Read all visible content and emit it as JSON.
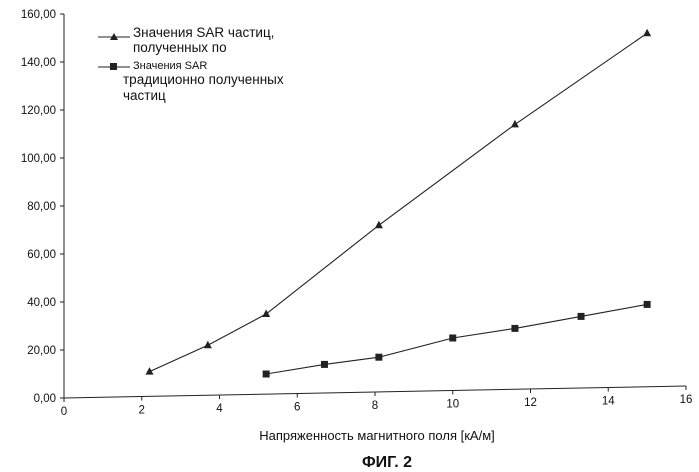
{
  "chart_data": {
    "type": "line",
    "title": "",
    "xlabel": "Напряженность магнитного поля [кА/м]",
    "ylabel": "",
    "xlim": [
      0,
      16
    ],
    "ylim": [
      0,
      160
    ],
    "x_ticks": [
      "0",
      "2",
      "4",
      "6",
      "8",
      "10",
      "12",
      "14",
      "16"
    ],
    "y_ticks": [
      "0,00",
      "20,00",
      "40,00",
      "60,00",
      "80,00",
      "100,00",
      "120,00",
      "140,00",
      "160,00"
    ],
    "grid": false,
    "legend_position": "top-left",
    "series": [
      {
        "name": "Значения SAR частиц, полученных по",
        "legend_lines": [
          "Значения SAR частиц,",
          "полученных по"
        ],
        "marker": "triangle",
        "x": [
          2.2,
          3.7,
          5.2,
          8.1,
          11.6,
          15.0
        ],
        "y": [
          11,
          22,
          35,
          72,
          114,
          152
        ]
      },
      {
        "name": "Значения SAR традиционно полученных частиц",
        "legend_lines": [
          "Значения SAR",
          "традиционно полученных",
          "частиц"
        ],
        "marker": "square",
        "x": [
          5.2,
          6.7,
          8.1,
          10.0,
          11.6,
          13.3,
          15.0
        ],
        "y": [
          10,
          14,
          17,
          25,
          29,
          34,
          39
        ]
      }
    ]
  },
  "figure_label": "ФИГ. 2"
}
